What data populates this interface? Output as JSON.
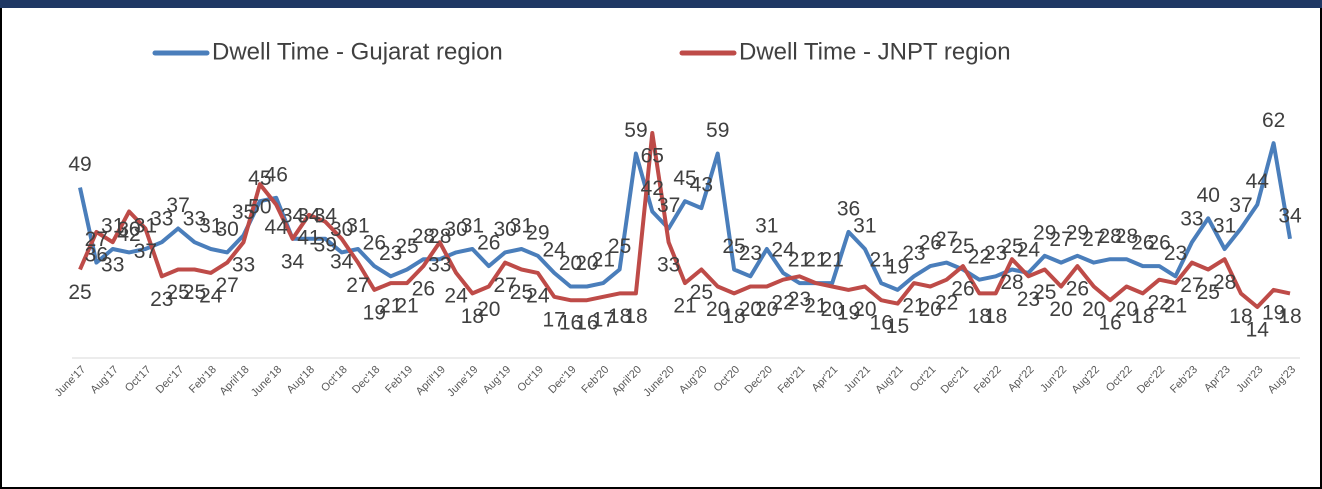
{
  "chart_data": {
    "type": "line",
    "categories": [
      "June'17",
      null,
      "Aug'17",
      null,
      "Oct'17",
      null,
      "Dec'17",
      null,
      "Feb'18",
      null,
      "April'18",
      null,
      "June'18",
      null,
      "Aug'18",
      null,
      "Oct'18",
      null,
      "Dec'18",
      null,
      "Feb'19",
      null,
      "April'19",
      null,
      "June'19",
      null,
      "Aug'19",
      null,
      "Oct'19",
      null,
      "Dec'19",
      null,
      "Feb'20",
      null,
      "April'20",
      null,
      "June'20",
      null,
      "Aug'20",
      null,
      "Oct'20",
      null,
      "Dec'20",
      null,
      "Feb'21",
      null,
      "Apr'21",
      null,
      "Jun'21",
      null,
      "Aug'21",
      null,
      "Oct'21",
      null,
      "Dec'21",
      null,
      "Feb'22",
      null,
      "Apr'22",
      null,
      "Jun'22",
      null,
      "Aug'22",
      null,
      "Oct'22",
      null,
      "Dec'22",
      null,
      "Feb'23",
      null,
      "Apr'23",
      null,
      "Jun'23",
      null,
      "Aug'23"
    ],
    "series": [
      {
        "name": "Dwell Time - Gujarat region",
        "color": "#4a7ebb",
        "values": [
          49,
          27,
          31,
          30,
          31,
          33,
          37,
          33,
          31,
          30,
          35,
          45,
          46,
          34,
          34,
          34,
          30,
          31,
          26,
          23,
          25,
          28,
          28,
          30,
          31,
          26,
          30,
          31,
          29,
          24,
          20,
          20,
          21,
          25,
          59,
          42,
          37,
          45,
          43,
          59,
          25,
          23,
          31,
          24,
          21,
          21,
          21,
          36,
          31,
          21,
          19,
          23,
          26,
          27,
          25,
          22,
          23,
          25,
          24,
          29,
          27,
          29,
          27,
          28,
          28,
          26,
          26,
          23,
          33,
          40,
          31,
          37,
          44,
          62,
          34
        ]
      },
      {
        "name": "Dwell Time - JNPT region",
        "color": "#be4b48",
        "values": [
          25,
          36,
          33,
          42,
          37,
          23,
          25,
          25,
          24,
          27,
          33,
          50,
          44,
          34,
          41,
          39,
          34,
          27,
          19,
          21,
          21,
          26,
          33,
          24,
          18,
          20,
          27,
          25,
          24,
          17,
          16,
          16,
          17,
          18,
          18,
          65,
          33,
          21,
          25,
          20,
          18,
          20,
          20,
          22,
          23,
          21,
          20,
          19,
          20,
          16,
          15,
          21,
          20,
          22,
          26,
          18,
          18,
          28,
          23,
          25,
          20,
          26,
          20,
          16,
          20,
          18,
          22,
          21,
          27,
          25,
          28,
          18,
          14,
          19,
          18
        ]
      }
    ]
  }
}
